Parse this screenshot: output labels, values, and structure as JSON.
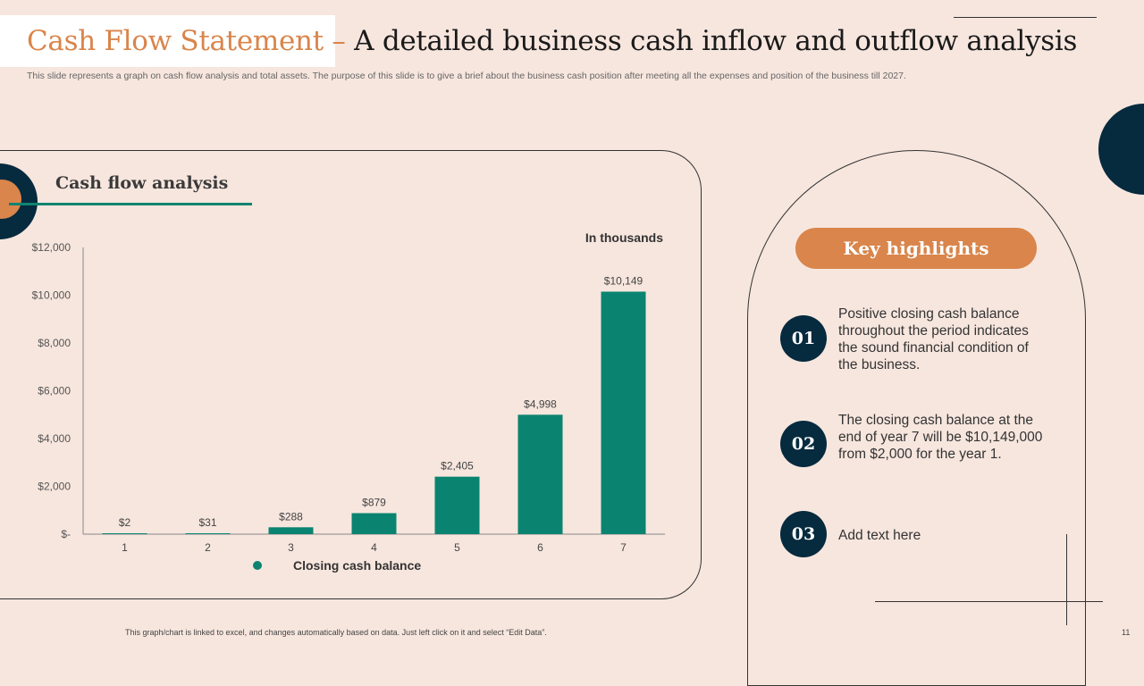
{
  "header": {
    "title_accent": "Cash Flow Statement – ",
    "title_main": "A detailed business cash inflow and outflow analysis",
    "subtitle": "This slide represents a graph on cash flow analysis and total assets. The purpose of this slide is to give a brief about the business cash position after meeting all the expenses and position of the business till 2027."
  },
  "chart_panel": {
    "title": "Cash flow analysis"
  },
  "chart_data": {
    "type": "bar",
    "title": "",
    "annotation": "In thousands",
    "categories": [
      "1",
      "2",
      "3",
      "4",
      "5",
      "6",
      "7"
    ],
    "series": [
      {
        "name": "Closing cash balance",
        "values": [
          2,
          31,
          288,
          879,
          2405,
          4998,
          10149
        ]
      }
    ],
    "data_labels": [
      "$2",
      "$31",
      "$288",
      "$879",
      "$2,405",
      "$4,998",
      "$10,149"
    ],
    "y_ticks": [
      0,
      2000,
      4000,
      6000,
      8000,
      10000,
      12000
    ],
    "y_tick_labels": [
      "$-",
      "$2,000",
      "$4,000",
      "$6,000",
      "$8,000",
      "$10,000",
      "$12,000"
    ],
    "ylim": [
      0,
      12000
    ],
    "grid": false,
    "legend": "bottom",
    "bar_color": "#0a8470"
  },
  "highlights": {
    "title": "Key highlights",
    "items": [
      {
        "num": "01",
        "text": "Positive closing cash balance throughout  the period indicates the sound financial condition of the business."
      },
      {
        "num": "02",
        "text": "The closing cash balance at the end of year 7 will be $10,149,000 from $2,000 for the year 1."
      },
      {
        "num": "03",
        "text": "Add text here"
      }
    ]
  },
  "footer": {
    "note": "This graph/chart is linked to excel, and changes automatically based on data. Just left click on it and select “Edit Data”.",
    "page": "11"
  },
  "colors": {
    "background": "#f7e6de",
    "accent_orange": "#d9854b",
    "dark_navy": "#062a3e",
    "teal": "#0a8470"
  }
}
